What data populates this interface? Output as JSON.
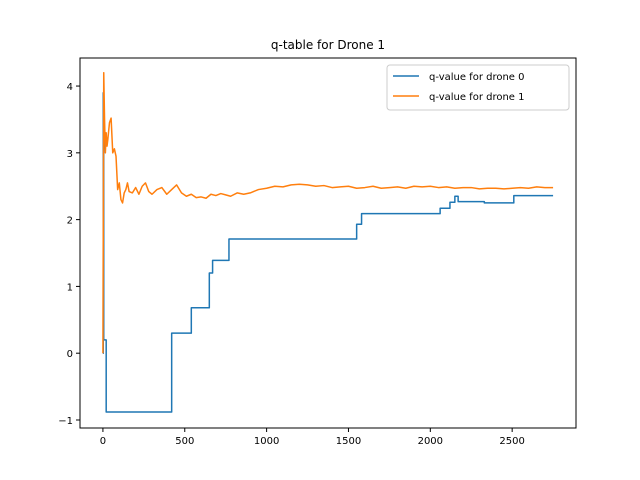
{
  "chart_data": {
    "type": "line",
    "title": "q-table for Drone 1",
    "xlabel": "",
    "ylabel": "",
    "xlim": [
      -140,
      2890
    ],
    "ylim": [
      -1.12,
      4.42
    ],
    "grid": false,
    "legend_position": "top-right",
    "x_ticks": [
      0,
      500,
      1000,
      1500,
      2000,
      2500
    ],
    "x_tick_labels": [
      "0",
      "500",
      "1000",
      "1500",
      "2000",
      "2500"
    ],
    "y_ticks": [
      -1,
      0,
      1,
      2,
      3,
      4
    ],
    "y_tick_labels": [
      "−1",
      "0",
      "1",
      "2",
      "3",
      "4"
    ],
    "series": [
      {
        "name": "q-value for drone 0",
        "color": "#1f77b4",
        "step": true,
        "x": [
          0,
          2,
          5,
          20,
          420,
          540,
          650,
          670,
          690,
          770,
          1550,
          1560,
          1580,
          2060,
          2120,
          2150,
          2170,
          2330,
          2510,
          2750
        ],
        "y": [
          0,
          3.9,
          0.2,
          -0.88,
          0.3,
          0.68,
          1.2,
          1.39,
          1.39,
          1.71,
          1.93,
          1.93,
          2.09,
          2.17,
          2.26,
          2.35,
          2.27,
          2.25,
          2.36,
          2.36
        ]
      },
      {
        "name": "q-value for drone 1",
        "color": "#ff7f0e",
        "step": false,
        "x": [
          0,
          5,
          10,
          15,
          20,
          25,
          30,
          40,
          50,
          60,
          70,
          80,
          90,
          100,
          110,
          120,
          130,
          140,
          150,
          160,
          180,
          200,
          220,
          240,
          260,
          280,
          300,
          330,
          360,
          390,
          420,
          450,
          480,
          510,
          540,
          570,
          600,
          630,
          660,
          690,
          720,
          750,
          780,
          820,
          860,
          900,
          950,
          1000,
          1050,
          1100,
          1150,
          1200,
          1250,
          1300,
          1350,
          1400,
          1450,
          1500,
          1550,
          1600,
          1650,
          1700,
          1750,
          1800,
          1850,
          1900,
          1950,
          2000,
          2050,
          2100,
          2150,
          2200,
          2250,
          2300,
          2350,
          2400,
          2450,
          2500,
          2550,
          2600,
          2650,
          2700,
          2750
        ],
        "y": [
          0.0,
          4.2,
          3.5,
          3.0,
          3.3,
          3.1,
          3.2,
          3.45,
          3.52,
          3.0,
          3.06,
          2.95,
          2.45,
          2.55,
          2.3,
          2.25,
          2.4,
          2.45,
          2.55,
          2.42,
          2.4,
          2.48,
          2.38,
          2.5,
          2.55,
          2.42,
          2.38,
          2.45,
          2.48,
          2.38,
          2.45,
          2.52,
          2.4,
          2.35,
          2.38,
          2.33,
          2.34,
          2.32,
          2.38,
          2.36,
          2.39,
          2.37,
          2.35,
          2.4,
          2.38,
          2.4,
          2.45,
          2.47,
          2.5,
          2.49,
          2.52,
          2.53,
          2.52,
          2.5,
          2.51,
          2.48,
          2.49,
          2.5,
          2.47,
          2.48,
          2.5,
          2.47,
          2.48,
          2.49,
          2.47,
          2.5,
          2.49,
          2.5,
          2.48,
          2.49,
          2.47,
          2.48,
          2.48,
          2.46,
          2.47,
          2.47,
          2.46,
          2.47,
          2.48,
          2.47,
          2.49,
          2.48,
          2.48
        ]
      }
    ]
  }
}
